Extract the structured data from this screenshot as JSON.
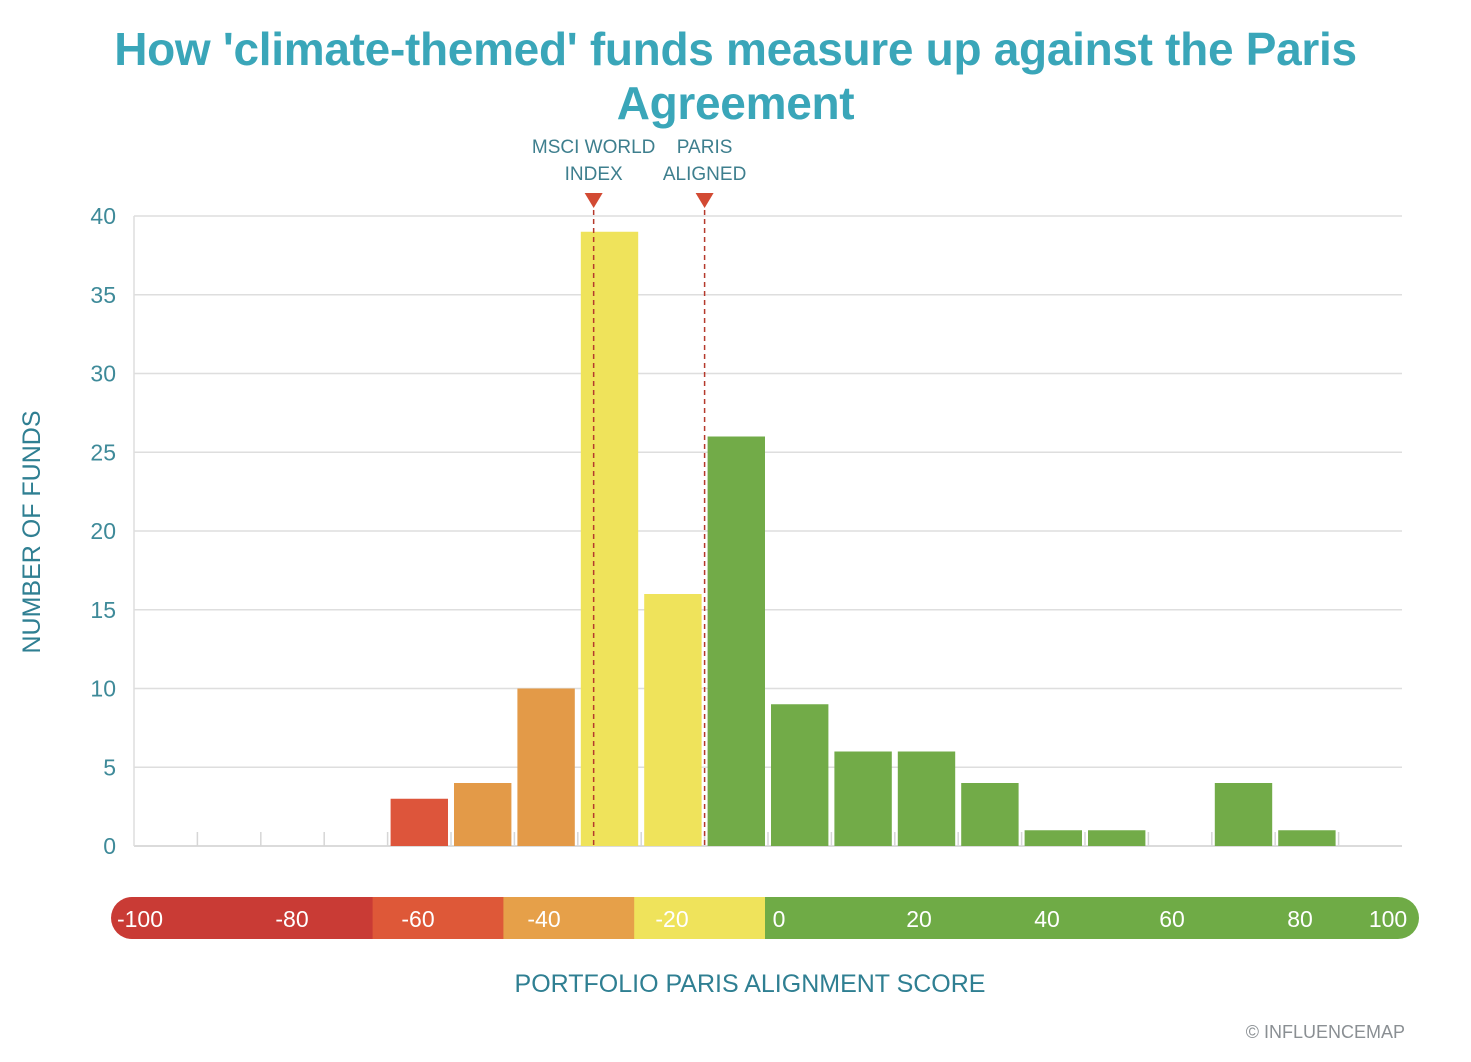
{
  "title": "How 'climate-themed' funds measure up against the Paris Agreement",
  "copyright": "© INFLUENCEMAP",
  "chart_data": {
    "type": "bar",
    "ylabel": "NUMBER OF FUNDS",
    "xlabel": "PORTFOLIO PARIS ALIGNMENT SCORE",
    "ylim": [
      0,
      40
    ],
    "yticks": [
      "0",
      "5",
      "10",
      "15",
      "20",
      "25",
      "30",
      "35",
      "40"
    ],
    "xlim": [
      -100,
      100
    ],
    "grid": true,
    "bin_width": 10,
    "bins": [
      {
        "start": -100,
        "value": 0,
        "color": "#d9463a"
      },
      {
        "start": -90,
        "value": 0,
        "color": "#d9463a"
      },
      {
        "start": -80,
        "value": 0,
        "color": "#d9463a"
      },
      {
        "start": -70,
        "value": 0,
        "color": "#d9463a"
      },
      {
        "start": -60,
        "value": 3,
        "color": "#dd553b"
      },
      {
        "start": -50,
        "value": 4,
        "color": "#e39a48"
      },
      {
        "start": -40,
        "value": 10,
        "color": "#e39a48"
      },
      {
        "start": -30,
        "value": 39,
        "color": "#efe35b"
      },
      {
        "start": -20,
        "value": 16,
        "color": "#efe35b"
      },
      {
        "start": -10,
        "value": 26,
        "color": "#72ab48"
      },
      {
        "start": 0,
        "value": 9,
        "color": "#72ab48"
      },
      {
        "start": 10,
        "value": 6,
        "color": "#72ab48"
      },
      {
        "start": 20,
        "value": 6,
        "color": "#72ab48"
      },
      {
        "start": 30,
        "value": 4,
        "color": "#72ab48"
      },
      {
        "start": 40,
        "value": 1,
        "color": "#72ab48"
      },
      {
        "start": 50,
        "value": 1,
        "color": "#72ab48"
      },
      {
        "start": 60,
        "value": 0,
        "color": "#72ab48"
      },
      {
        "start": 70,
        "value": 4,
        "color": "#72ab48"
      },
      {
        "start": 80,
        "value": 1,
        "color": "#72ab48"
      }
    ],
    "markers": [
      {
        "name": "msci",
        "label_lines": [
          "MSCI WORLD",
          "INDEX"
        ],
        "x": -27.5,
        "color": "#d24a33"
      },
      {
        "name": "paris",
        "label_lines": [
          "PARIS",
          "ALIGNED"
        ],
        "x": -10,
        "color": "#d24a33"
      }
    ],
    "score_scale": {
      "segments": [
        {
          "from": -100,
          "to": -60,
          "color": "#c93b35"
        },
        {
          "from": -60,
          "to": -40,
          "color": "#de5838"
        },
        {
          "from": -40,
          "to": -20,
          "color": "#e6a049"
        },
        {
          "from": -20,
          "to": 0,
          "color": "#efe35b"
        },
        {
          "from": 0,
          "to": 100,
          "color": "#6fab46"
        }
      ],
      "labels": [
        "-100",
        "-80",
        "-60",
        "-40",
        "-20",
        "0",
        "20",
        "40",
        "60",
        "80",
        "100"
      ]
    }
  }
}
